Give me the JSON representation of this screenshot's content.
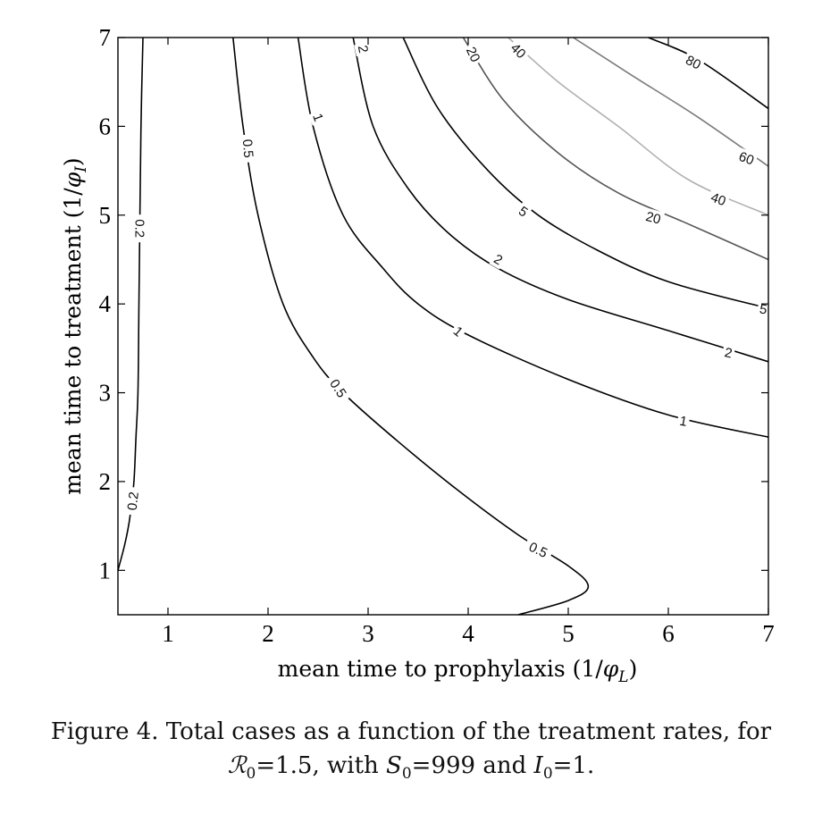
{
  "chart_data": {
    "type": "contour",
    "xlabel": "mean time to prophylaxis (1/φ_L)",
    "ylabel": "mean time to treatment (1/φ_I)",
    "xlim": [
      0.5,
      7
    ],
    "ylim": [
      0.5,
      7
    ],
    "xticks": [
      1,
      2,
      3,
      4,
      5,
      6,
      7
    ],
    "yticks": [
      1,
      2,
      3,
      4,
      5,
      6,
      7
    ],
    "grid": false,
    "contours": [
      {
        "level": "0.2",
        "color": "#000000",
        "points": [
          [
            0.75,
            7.0
          ],
          [
            0.73,
            6.0
          ],
          [
            0.72,
            5.0
          ],
          [
            0.71,
            4.0
          ],
          [
            0.7,
            3.0
          ],
          [
            0.68,
            2.5
          ],
          [
            0.66,
            2.0
          ],
          [
            0.62,
            1.6
          ],
          [
            0.57,
            1.3
          ],
          [
            0.5,
            1.0
          ]
        ]
      },
      {
        "level": "0.5",
        "color": "#000000",
        "points": [
          [
            1.65,
            7.0
          ],
          [
            1.75,
            6.0
          ],
          [
            1.9,
            5.0
          ],
          [
            2.15,
            4.0
          ],
          [
            2.45,
            3.4
          ],
          [
            2.75,
            3.0
          ],
          [
            3.3,
            2.45
          ],
          [
            3.9,
            1.9
          ],
          [
            4.5,
            1.4
          ],
          [
            5.0,
            1.05
          ],
          [
            5.2,
            0.82
          ],
          [
            5.0,
            0.66
          ],
          [
            4.5,
            0.5
          ]
        ]
      },
      {
        "level": "1",
        "color": "#000000",
        "points": [
          [
            2.3,
            7.0
          ],
          [
            2.45,
            6.0
          ],
          [
            2.75,
            5.0
          ],
          [
            3.15,
            4.4
          ],
          [
            3.5,
            4.0
          ],
          [
            4.0,
            3.65
          ],
          [
            5.0,
            3.15
          ],
          [
            6.0,
            2.75
          ],
          [
            7.0,
            2.5
          ]
        ]
      },
      {
        "level": "2",
        "color": "#000000",
        "points": [
          [
            2.85,
            7.0
          ],
          [
            3.05,
            6.0
          ],
          [
            3.4,
            5.3
          ],
          [
            3.8,
            4.8
          ],
          [
            4.3,
            4.4
          ],
          [
            5.0,
            4.05
          ],
          [
            6.0,
            3.7
          ],
          [
            7.0,
            3.35
          ]
        ]
      },
      {
        "level": "5",
        "color": "#000000",
        "points": [
          [
            3.35,
            7.0
          ],
          [
            3.7,
            6.2
          ],
          [
            4.2,
            5.5
          ],
          [
            4.7,
            5.0
          ],
          [
            5.3,
            4.6
          ],
          [
            6.0,
            4.25
          ],
          [
            7.0,
            3.95
          ]
        ]
      },
      {
        "level": "20",
        "color": "#555555",
        "points": [
          [
            3.95,
            7.0
          ],
          [
            4.35,
            6.3
          ],
          [
            4.9,
            5.7
          ],
          [
            5.5,
            5.25
          ],
          [
            6.2,
            4.9
          ],
          [
            7.0,
            4.5
          ]
        ]
      },
      {
        "level": "40",
        "color": "#b0b0b0",
        "points": [
          [
            4.4,
            7.0
          ],
          [
            4.9,
            6.5
          ],
          [
            5.5,
            6.0
          ],
          [
            6.2,
            5.4
          ],
          [
            7.0,
            5.0
          ]
        ]
      },
      {
        "level": "60",
        "color": "#7a7a7a",
        "points": [
          [
            5.05,
            7.0
          ],
          [
            5.6,
            6.6
          ],
          [
            6.3,
            6.1
          ],
          [
            7.0,
            5.55
          ]
        ]
      },
      {
        "level": "80",
        "color": "#000000",
        "points": [
          [
            5.8,
            7.0
          ],
          [
            6.3,
            6.75
          ],
          [
            7.0,
            6.2
          ]
        ]
      }
    ],
    "labels": [
      {
        "text": "0.2",
        "x": 0.72,
        "y": 4.85,
        "angle": 90
      },
      {
        "text": "0.2",
        "x": 0.65,
        "y": 1.78,
        "angle": -84
      },
      {
        "text": "0.5",
        "x": 1.8,
        "y": 5.75,
        "angle": 85
      },
      {
        "text": "0.5",
        "x": 2.7,
        "y": 3.05,
        "angle": 57
      },
      {
        "text": "0.5",
        "x": 4.7,
        "y": 1.23,
        "angle": 25
      },
      {
        "text": "1",
        "x": 2.5,
        "y": 6.1,
        "angle": 70
      },
      {
        "text": "1",
        "x": 3.9,
        "y": 3.69,
        "angle": 40
      },
      {
        "text": "1",
        "x": 6.15,
        "y": 2.68,
        "angle": 10
      },
      {
        "text": "2",
        "x": 2.95,
        "y": 6.87,
        "angle": 78
      },
      {
        "text": "2",
        "x": 4.3,
        "y": 4.5,
        "angle": 30
      },
      {
        "text": "2",
        "x": 6.6,
        "y": 3.45,
        "angle": 12
      },
      {
        "text": "5",
        "x": 4.55,
        "y": 5.04,
        "angle": 35
      },
      {
        "text": "5",
        "x": 6.95,
        "y": 3.94,
        "angle": 10
      },
      {
        "text": "20",
        "x": 4.05,
        "y": 6.81,
        "angle": 65
      },
      {
        "text": "20",
        "x": 5.85,
        "y": 4.97,
        "angle": 15
      },
      {
        "text": "40",
        "x": 4.5,
        "y": 6.85,
        "angle": 45
      },
      {
        "text": "40",
        "x": 6.5,
        "y": 5.18,
        "angle": 20
      },
      {
        "text": "60",
        "x": 6.78,
        "y": 5.64,
        "angle": 20
      },
      {
        "text": "80",
        "x": 6.25,
        "y": 6.72,
        "angle": 27
      }
    ]
  },
  "caption": {
    "line1": "Figure 4. Total cases as a function of the treatment rates, for",
    "line2_r0_value": "1.5",
    "line2_with": ", with ",
    "line2_s0_value": "999",
    "line2_and": " and ",
    "line2_i0_value": "1",
    "line2_end": "."
  }
}
